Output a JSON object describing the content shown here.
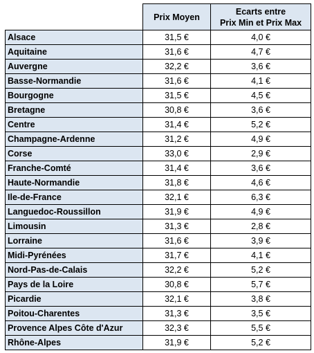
{
  "table": {
    "headers": {
      "region": "",
      "prix_moyen": "Prix Moyen",
      "ecarts_line1": "Ecarts entre",
      "ecarts_line2": "Prix Min et Prix Max"
    },
    "rows": [
      {
        "region": "Alsace",
        "prix": "31,5 €",
        "ecart": "4,0 €"
      },
      {
        "region": "Aquitaine",
        "prix": "31,6 €",
        "ecart": "4,7 €"
      },
      {
        "region": "Auvergne",
        "prix": "32,2 €",
        "ecart": "3,6 €"
      },
      {
        "region": "Basse-Normandie",
        "prix": "31,6 €",
        "ecart": "4,1 €"
      },
      {
        "region": "Bourgogne",
        "prix": "31,5 €",
        "ecart": "4,5 €"
      },
      {
        "region": "Bretagne",
        "prix": "30,8 €",
        "ecart": "3,6 €"
      },
      {
        "region": "Centre",
        "prix": "31,4 €",
        "ecart": "5,2 €"
      },
      {
        "region": "Champagne-Ardenne",
        "prix": "31,2 €",
        "ecart": "4,9 €"
      },
      {
        "region": "Corse",
        "prix": "33,0 €",
        "ecart": "2,9 €"
      },
      {
        "region": "Franche-Comté",
        "prix": "31,4 €",
        "ecart": "3,6 €"
      },
      {
        "region": "Haute-Normandie",
        "prix": "31,8 €",
        "ecart": "4,6 €"
      },
      {
        "region": "Ile-de-France",
        "prix": "32,1 €",
        "ecart": "6,3 €"
      },
      {
        "region": "Languedoc-Roussillon",
        "prix": "31,9 €",
        "ecart": "4,9 €"
      },
      {
        "region": "Limousin",
        "prix": "31,3 €",
        "ecart": "2,8 €"
      },
      {
        "region": "Lorraine",
        "prix": "31,6 €",
        "ecart": "3,9 €"
      },
      {
        "region": "Midi-Pyrénées",
        "prix": "31,7 €",
        "ecart": "4,1 €"
      },
      {
        "region": "Nord-Pas-de-Calais",
        "prix": "32,2 €",
        "ecart": "5,2 €"
      },
      {
        "region": "Pays de la Loire",
        "prix": "30,8 €",
        "ecart": "5,7 €"
      },
      {
        "region": "Picardie",
        "prix": "32,1 €",
        "ecart": "3,8 €"
      },
      {
        "region": "Poitou-Charentes",
        "prix": "31,3 €",
        "ecart": "3,5 €"
      },
      {
        "region": "Provence Alpes Côte d'Azur",
        "prix": "32,3 €",
        "ecart": "5,5 €"
      },
      {
        "region": "Rhône-Alpes",
        "prix": "31,9 €",
        "ecart": "5,2 €"
      }
    ]
  },
  "colors": {
    "header_fill": "#dce6f1",
    "region_fill": "#dce6f1",
    "border": "#000000"
  }
}
